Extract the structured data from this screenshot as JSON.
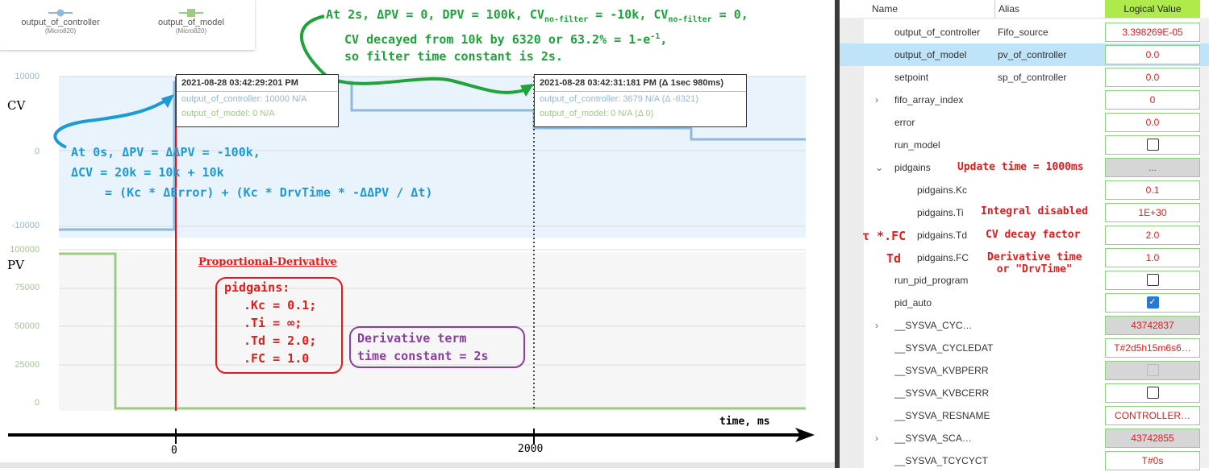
{
  "legend": {
    "series1": {
      "name": "output_of_controller",
      "sub": "(Micro820)"
    },
    "series2": {
      "name": "output_of_model",
      "sub": "(Micro820)"
    }
  },
  "colors": {
    "controller": "#8fb8dc",
    "model": "#9ccc82",
    "cursor": "#d11",
    "green_note": "#1fa33a",
    "blue_note": "#1c9ad6",
    "red": "#e21c1c",
    "purple": "#8a3fa0"
  },
  "cv_axis": {
    "label": "CV",
    "ticks": [
      "10000",
      "0",
      "-10000"
    ]
  },
  "pv_axis": {
    "label": "PV",
    "ticks": [
      "100000",
      "75000",
      "50000",
      "25000",
      "0"
    ]
  },
  "time_axis": {
    "label": "time, ms",
    "ticks": [
      "0",
      "2000"
    ]
  },
  "tooltip1": {
    "header": "2021-08-28 03:42:29:201 PM",
    "row1": "output_of_controller: 10000 N/A",
    "row2": "output_of_model: 0 N/A"
  },
  "tooltip2": {
    "header": "2021-08-28 03:42:31:181 PM (Δ 1sec 980ms)",
    "row1": "output_of_controller: 3679 N/A (Δ -6321)",
    "row2": "output_of_model: 0 N/A (Δ 0)"
  },
  "green_note": {
    "line1": "At 2s, ΔPV = 0, DPV = 100k, CV",
    "sub1": "no-filter",
    "line1b": " = -10k, CV",
    "sub2": "no-filter",
    "line1c": " = 0,",
    "line2": "CV decayed from 10k by 6320 or 63.2% = 1-e",
    "sup": "-1",
    "line2b": ",",
    "line3": "so filter time constant is 2s."
  },
  "blue_note": {
    "line1": "At 0s, ΔPV = ΔΔPV = -100k,",
    "line2": "ΔCV = 20k = 10k + 10k",
    "line3": "= (Kc * ΔError) + (Kc * DrvTime * -ΔΔPV / Δt)"
  },
  "pd_title": "Proportional-Derivative",
  "pidgains_box": [
    "pidgains:",
    ".Kc = 0.1;",
    ".Ti = ∞;",
    ".Td = 2.0;",
    ".FC = 1.0"
  ],
  "purple_box": [
    "Derivative term",
    "time constant = 2s"
  ],
  "panel": {
    "headers": {
      "name": "Name",
      "alias": "Alias",
      "value": "Logical Value"
    },
    "rows": [
      {
        "name": "output_of_controller",
        "alias": "Fifo_source",
        "value": "3.398269E-05"
      },
      {
        "name": "output_of_model",
        "alias": "pv_of_controller",
        "value": "0.0"
      },
      {
        "name": "setpoint",
        "alias": "sp_of_controller",
        "value": "0.0"
      },
      {
        "name": "fifo_array_index",
        "alias": "",
        "value": "0"
      },
      {
        "name": "error",
        "alias": "",
        "value": "0.0"
      },
      {
        "name": "run_model",
        "alias": "",
        "value": ""
      },
      {
        "name": "pidgains",
        "alias": "",
        "value": "..."
      },
      {
        "name": "pidgains.Kc",
        "alias": "",
        "value": "0.1"
      },
      {
        "name": "pidgains.Ti",
        "alias": "",
        "value": "1E+30"
      },
      {
        "name": "pidgains.Td",
        "alias": "",
        "value": "2.0"
      },
      {
        "name": "pidgains.FC",
        "alias": "",
        "value": "1.0"
      },
      {
        "name": "run_pid_program",
        "alias": "",
        "value": ""
      },
      {
        "name": "pid_auto",
        "alias": "",
        "value": ""
      },
      {
        "name": "__SYSVA_CYC…",
        "alias": "",
        "value": "43742837"
      },
      {
        "name": "__SYSVA_CYCLEDAT",
        "alias": "",
        "value": "T#2d5h15m6s6…"
      },
      {
        "name": "__SYSVA_KVBPERR",
        "alias": "",
        "value": ""
      },
      {
        "name": "__SYSVA_KVBCERR",
        "alias": "",
        "value": ""
      },
      {
        "name": "__SYSVA_RESNAME",
        "alias": "",
        "value": "CONTROLLER…"
      },
      {
        "name": "__SYSVA_SCA…",
        "alias": "",
        "value": "43742855"
      },
      {
        "name": "__SYSVA_TCYCYCT",
        "alias": "",
        "value": "T#0s"
      }
    ],
    "notes": {
      "update_time": "Update time = 1000ms",
      "integral": "Integral disabled",
      "tau_fc": "τ *.FC",
      "cv_decay": "CV decay factor",
      "td": "Td",
      "deriv1": "Derivative time",
      "deriv2": "or \"DrvTime\""
    }
  }
}
